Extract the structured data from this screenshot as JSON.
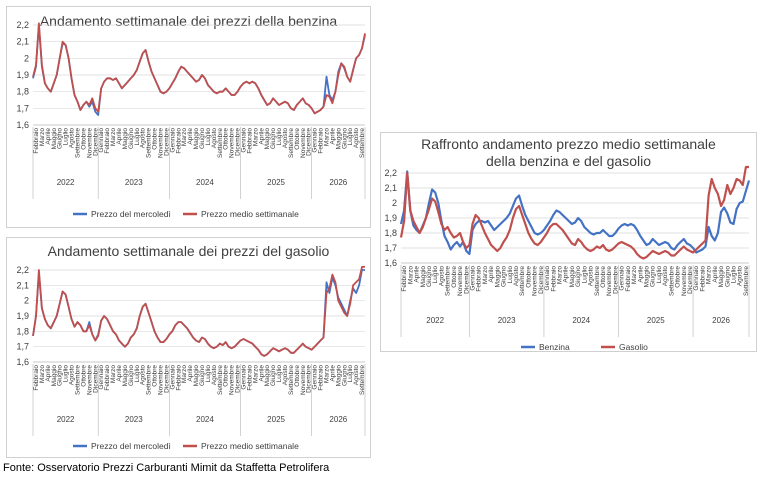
{
  "footer": "Fonte: Osservatorio Prezzi Carburanti Mimit da Staffetta Petrolifera",
  "colors": {
    "benzina": "#4472c4",
    "gasolio": "#c0504d",
    "axis_text": "#404040",
    "grid": "#d9d9d9"
  },
  "chart_data": [
    {
      "id": "benzina",
      "type": "line",
      "title": "Andamento settimanale dei prezzi della benzina",
      "x_unit": "week",
      "x_start": "2022-02",
      "x_end": "2026-09",
      "years": [
        "2022",
        "2023",
        "2024",
        "2025",
        "2026"
      ],
      "month_ticks": [
        "Febbraio",
        "Marzo",
        "Aprile",
        "Maggio",
        "Giugno",
        "Luglio",
        "Agosto",
        "Settembre",
        "Ottobre",
        "Novembre",
        "Dicembre",
        "Gennaio",
        "Febbraio",
        "Marzo",
        "Aprile",
        "Maggio",
        "Giugno",
        "Luglio",
        "Agosto",
        "Settembre",
        "Ottobre",
        "Novembre",
        "Dicembre",
        "Gennaio",
        "Febbraio",
        "Marzo",
        "Aprile",
        "Maggio",
        "Giugno",
        "Luglio",
        "Agosto",
        "Settembre",
        "Ottobre",
        "Novembre",
        "Dicembre",
        "Gennaio",
        "Febbraio",
        "Marzo",
        "Aprile",
        "Maggio",
        "Giugno",
        "Luglio",
        "Agosto",
        "Settembre",
        "Ottobre",
        "Novembre",
        "Dicembre",
        "Gennaio",
        "Febbraio",
        "Marzo",
        "Aprile",
        "Maggio",
        "Giugno",
        "Luglio",
        "Agosto",
        "Settembre"
      ],
      "ylim": [
        1.6,
        2.2
      ],
      "yticks": [
        "1,6",
        "1,7",
        "1,8",
        "1,9",
        "2",
        "2,1",
        "2,2"
      ],
      "legend_position": "bottom",
      "series": [
        {
          "name": "Prezzo del mercoledì",
          "color": "#4472c4",
          "values": [
            1.88,
            1.95,
            2.2,
            1.95,
            1.85,
            1.82,
            1.8,
            1.85,
            1.9,
            2.0,
            2.09,
            2.08,
            2.0,
            1.88,
            1.78,
            1.74,
            1.69,
            1.72,
            1.74,
            1.71,
            1.74,
            1.68,
            1.66,
            1.82,
            1.86,
            1.88,
            1.88,
            1.87,
            1.88,
            1.85,
            1.82,
            1.84,
            1.86,
            1.88,
            1.9,
            1.93,
            1.98,
            2.03,
            2.05,
            1.98,
            1.92,
            1.88,
            1.84,
            1.8,
            1.79,
            1.8,
            1.82,
            1.85,
            1.88,
            1.92,
            1.95,
            1.94,
            1.92,
            1.9,
            1.88,
            1.86,
            1.87,
            1.9,
            1.88,
            1.84,
            1.82,
            1.8,
            1.79,
            1.8,
            1.8,
            1.82,
            1.8,
            1.78,
            1.78,
            1.8,
            1.83,
            1.85,
            1.86,
            1.85,
            1.86,
            1.85,
            1.82,
            1.78,
            1.75,
            1.72,
            1.73,
            1.76,
            1.74,
            1.72,
            1.73,
            1.74,
            1.73,
            1.7,
            1.69,
            1.72,
            1.74,
            1.76,
            1.73,
            1.72,
            1.7,
            1.67,
            1.68,
            1.69,
            1.71,
            1.89,
            1.78,
            1.75,
            1.8,
            1.92,
            1.97,
            1.94,
            1.89,
            1.86,
            1.93,
            2.0,
            2.02,
            2.06,
            2.14
          ]
        },
        {
          "name": "Prezzo medio settimanale",
          "color": "#c0504d",
          "values": [
            1.89,
            1.96,
            2.21,
            1.96,
            1.85,
            1.82,
            1.8,
            1.85,
            1.9,
            2.0,
            2.1,
            2.08,
            2.0,
            1.88,
            1.78,
            1.74,
            1.69,
            1.72,
            1.74,
            1.72,
            1.76,
            1.7,
            1.68,
            1.82,
            1.86,
            1.88,
            1.88,
            1.87,
            1.88,
            1.85,
            1.82,
            1.84,
            1.86,
            1.88,
            1.9,
            1.93,
            1.98,
            2.03,
            2.05,
            1.98,
            1.92,
            1.88,
            1.84,
            1.8,
            1.79,
            1.8,
            1.82,
            1.85,
            1.88,
            1.92,
            1.95,
            1.94,
            1.92,
            1.9,
            1.88,
            1.86,
            1.87,
            1.9,
            1.88,
            1.84,
            1.82,
            1.8,
            1.79,
            1.8,
            1.8,
            1.82,
            1.8,
            1.78,
            1.78,
            1.8,
            1.83,
            1.85,
            1.86,
            1.85,
            1.86,
            1.85,
            1.82,
            1.78,
            1.75,
            1.72,
            1.73,
            1.76,
            1.74,
            1.72,
            1.73,
            1.74,
            1.73,
            1.7,
            1.69,
            1.72,
            1.74,
            1.76,
            1.73,
            1.72,
            1.7,
            1.67,
            1.68,
            1.69,
            1.71,
            1.78,
            1.77,
            1.73,
            1.8,
            1.9,
            1.97,
            1.95,
            1.89,
            1.86,
            1.93,
            2.0,
            2.02,
            2.06,
            2.15
          ]
        }
      ]
    },
    {
      "id": "gasolio",
      "type": "line",
      "title": "Andamento settimanale dei prezzi del gasolio",
      "x_unit": "week",
      "x_start": "2022-02",
      "x_end": "2026-09",
      "years": [
        "2022",
        "2023",
        "2024",
        "2025",
        "2026"
      ],
      "month_ticks": [
        "Febbraio",
        "Marzo",
        "Aprile",
        "Maggio",
        "Giugno",
        "Luglio",
        "Agosto",
        "Settembre",
        "Ottobre",
        "Novembre",
        "Dicembre",
        "Gennaio",
        "Febbraio",
        "Marzo",
        "Aprile",
        "Maggio",
        "Giugno",
        "Luglio",
        "Agosto",
        "Settembre",
        "Ottobre",
        "Novembre",
        "Dicembre",
        "Gennaio",
        "Febbraio",
        "Marzo",
        "Aprile",
        "Maggio",
        "Giugno",
        "Luglio",
        "Agosto",
        "Settembre",
        "Ottobre",
        "Novembre",
        "Dicembre",
        "Gennaio",
        "Febbraio",
        "Marzo",
        "Aprile",
        "Maggio",
        "Giugno",
        "Luglio",
        "Agosto",
        "Settembre",
        "Ottobre",
        "Novembre",
        "Dicembre",
        "Gennaio",
        "Febbraio",
        "Marzo",
        "Aprile",
        "Maggio",
        "Giugno",
        "Luglio",
        "Agosto",
        "Settembre"
      ],
      "ylim": [
        1.6,
        2.2
      ],
      "yticks": [
        "1,6",
        "1,7",
        "1,8",
        "1,9",
        "2",
        "2,1",
        "2,2"
      ],
      "legend_position": "bottom",
      "series": [
        {
          "name": "Prezzo del mercoledì",
          "color": "#4472c4",
          "values": [
            1.77,
            1.9,
            2.18,
            1.95,
            1.88,
            1.84,
            1.82,
            1.86,
            1.9,
            1.98,
            2.06,
            2.04,
            1.96,
            1.88,
            1.83,
            1.86,
            1.84,
            1.8,
            1.8,
            1.86,
            1.78,
            1.74,
            1.78,
            1.87,
            1.9,
            1.88,
            1.84,
            1.8,
            1.78,
            1.74,
            1.72,
            1.7,
            1.72,
            1.76,
            1.78,
            1.82,
            1.9,
            1.96,
            1.98,
            1.92,
            1.86,
            1.8,
            1.76,
            1.73,
            1.73,
            1.75,
            1.78,
            1.8,
            1.84,
            1.86,
            1.86,
            1.84,
            1.82,
            1.79,
            1.76,
            1.74,
            1.73,
            1.76,
            1.75,
            1.72,
            1.7,
            1.69,
            1.7,
            1.72,
            1.71,
            1.73,
            1.7,
            1.69,
            1.7,
            1.72,
            1.74,
            1.75,
            1.74,
            1.73,
            1.72,
            1.7,
            1.68,
            1.65,
            1.64,
            1.65,
            1.67,
            1.69,
            1.68,
            1.67,
            1.68,
            1.69,
            1.68,
            1.66,
            1.66,
            1.68,
            1.7,
            1.72,
            1.7,
            1.69,
            1.68,
            1.7,
            1.72,
            1.74,
            1.76,
            2.12,
            2.05,
            2.15,
            2.1,
            2.02,
            1.98,
            1.94,
            1.9,
            2.0,
            2.08,
            2.05,
            2.1,
            2.2,
            2.2
          ]
        },
        {
          "name": "Prezzo medio settimanale",
          "color": "#c0504d",
          "values": [
            1.77,
            1.9,
            2.2,
            1.95,
            1.88,
            1.84,
            1.82,
            1.86,
            1.9,
            1.98,
            2.06,
            2.04,
            1.96,
            1.88,
            1.83,
            1.86,
            1.84,
            1.8,
            1.8,
            1.84,
            1.78,
            1.74,
            1.77,
            1.87,
            1.9,
            1.88,
            1.84,
            1.8,
            1.78,
            1.74,
            1.72,
            1.7,
            1.72,
            1.76,
            1.78,
            1.82,
            1.9,
            1.96,
            1.98,
            1.92,
            1.86,
            1.8,
            1.76,
            1.73,
            1.73,
            1.75,
            1.78,
            1.8,
            1.84,
            1.86,
            1.86,
            1.84,
            1.82,
            1.79,
            1.76,
            1.74,
            1.73,
            1.76,
            1.75,
            1.72,
            1.7,
            1.69,
            1.7,
            1.72,
            1.71,
            1.73,
            1.7,
            1.69,
            1.7,
            1.72,
            1.74,
            1.75,
            1.74,
            1.73,
            1.72,
            1.7,
            1.68,
            1.65,
            1.64,
            1.65,
            1.67,
            1.69,
            1.68,
            1.67,
            1.68,
            1.69,
            1.68,
            1.66,
            1.66,
            1.68,
            1.7,
            1.72,
            1.7,
            1.69,
            1.68,
            1.7,
            1.72,
            1.74,
            1.76,
            2.05,
            2.08,
            2.17,
            2.12,
            2.0,
            1.96,
            1.92,
            1.9,
            1.98,
            2.1,
            2.12,
            2.14,
            2.22,
            2.22
          ]
        }
      ]
    },
    {
      "id": "raffronto",
      "type": "line",
      "title": "Raffronto andamento prezzo medio settimanale della benzina e del gasolio",
      "title_lines": [
        "Raffronto andamento prezzo medio settimanale",
        "della benzina e del gasolio"
      ],
      "x_unit": "week",
      "x_start": "2022-02",
      "x_end": "2026-09",
      "years": [
        "2022",
        "2023",
        "2024",
        "2025",
        "2026"
      ],
      "month_ticks": [
        "Febbraio",
        "Marzo",
        "Aprile",
        "Maggio",
        "Giugno",
        "Luglio",
        "Agosto",
        "Settembre",
        "Ottobre",
        "Novembre",
        "Dicembre",
        "Gennaio",
        "Febbraio",
        "Marzo",
        "Aprile",
        "Maggio",
        "Giugno",
        "Luglio",
        "Agosto",
        "Settembre",
        "Ottobre",
        "Novembre",
        "Dicembre",
        "Gennaio",
        "Febbraio",
        "Marzo",
        "Aprile",
        "Maggio",
        "Giugno",
        "Luglio",
        "Agosto",
        "Settembre",
        "Ottobre",
        "Novembre",
        "Dicembre",
        "Gennaio",
        "Febbraio",
        "Marzo",
        "Aprile",
        "Maggio",
        "Giugno",
        "Luglio",
        "Agosto",
        "Settembre",
        "Ottobre",
        "Novembre",
        "Dicembre",
        "Gennaio",
        "Febbraio",
        "Marzo",
        "Aprile",
        "Maggio",
        "Giugno",
        "Luglio",
        "Agosto",
        "Settembre"
      ],
      "ylim": [
        1.6,
        2.2
      ],
      "yticks": [
        "1,6",
        "1,7",
        "1,8",
        "1,9",
        "2",
        "2,1",
        "2,2"
      ],
      "legend_position": "bottom",
      "series": [
        {
          "name": "Benzina",
          "color": "#4472c4",
          "values": [
            1.86,
            1.95,
            2.21,
            1.95,
            1.85,
            1.82,
            1.8,
            1.85,
            1.9,
            2.0,
            2.09,
            2.07,
            2.0,
            1.88,
            1.78,
            1.74,
            1.69,
            1.72,
            1.74,
            1.71,
            1.74,
            1.68,
            1.66,
            1.82,
            1.86,
            1.88,
            1.88,
            1.87,
            1.88,
            1.85,
            1.82,
            1.84,
            1.86,
            1.88,
            1.9,
            1.93,
            1.98,
            2.03,
            2.05,
            1.98,
            1.92,
            1.88,
            1.84,
            1.8,
            1.79,
            1.8,
            1.82,
            1.85,
            1.88,
            1.92,
            1.95,
            1.94,
            1.92,
            1.9,
            1.88,
            1.86,
            1.87,
            1.9,
            1.88,
            1.84,
            1.82,
            1.8,
            1.79,
            1.8,
            1.8,
            1.82,
            1.8,
            1.78,
            1.78,
            1.8,
            1.83,
            1.85,
            1.86,
            1.85,
            1.86,
            1.85,
            1.82,
            1.78,
            1.75,
            1.72,
            1.73,
            1.76,
            1.74,
            1.72,
            1.73,
            1.74,
            1.73,
            1.7,
            1.69,
            1.72,
            1.74,
            1.76,
            1.73,
            1.72,
            1.7,
            1.67,
            1.68,
            1.69,
            1.71,
            1.84,
            1.78,
            1.75,
            1.8,
            1.94,
            1.97,
            1.93,
            1.87,
            1.86,
            1.96,
            2.0,
            2.01,
            2.08,
            2.15
          ]
        },
        {
          "name": "Gasolio",
          "color": "#c0504d",
          "values": [
            1.77,
            1.88,
            2.2,
            1.95,
            1.88,
            1.84,
            1.8,
            1.84,
            1.9,
            1.96,
            2.03,
            2.01,
            1.94,
            1.86,
            1.82,
            1.84,
            1.8,
            1.77,
            1.78,
            1.8,
            1.74,
            1.7,
            1.72,
            1.86,
            1.92,
            1.9,
            1.85,
            1.8,
            1.76,
            1.72,
            1.7,
            1.68,
            1.7,
            1.74,
            1.77,
            1.82,
            1.9,
            1.96,
            1.98,
            1.92,
            1.86,
            1.8,
            1.76,
            1.73,
            1.72,
            1.74,
            1.77,
            1.8,
            1.84,
            1.86,
            1.86,
            1.84,
            1.82,
            1.79,
            1.76,
            1.73,
            1.72,
            1.76,
            1.74,
            1.71,
            1.69,
            1.68,
            1.69,
            1.71,
            1.7,
            1.72,
            1.69,
            1.68,
            1.69,
            1.71,
            1.73,
            1.74,
            1.73,
            1.72,
            1.71,
            1.69,
            1.66,
            1.64,
            1.63,
            1.64,
            1.66,
            1.68,
            1.67,
            1.66,
            1.67,
            1.68,
            1.67,
            1.65,
            1.65,
            1.67,
            1.69,
            1.71,
            1.69,
            1.68,
            1.67,
            1.69,
            1.71,
            1.73,
            1.75,
            2.05,
            2.16,
            2.1,
            2.06,
            1.98,
            2.02,
            2.12,
            2.06,
            2.1,
            2.16,
            2.15,
            2.12,
            2.24,
            2.24
          ]
        }
      ]
    }
  ]
}
